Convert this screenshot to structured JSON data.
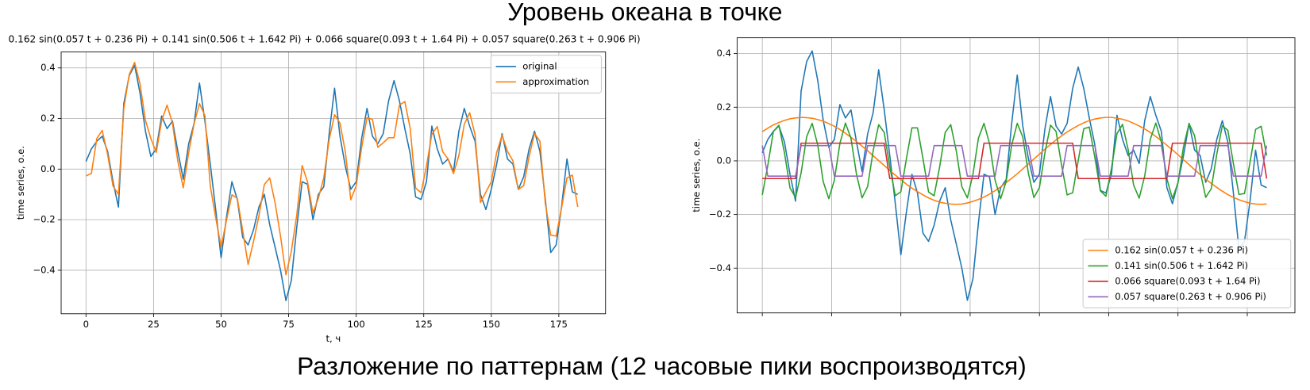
{
  "page": {
    "title": "Уровень океана в точке",
    "caption": "Разложение по паттернам (12 часовые пики воспроизводятся)"
  },
  "chart_data": [
    {
      "type": "line",
      "title": "0.162 sin(0.057 t + 0.236 Pi) + 0.141 sin(0.506 t + 1.642 Pi) + 0.066 square(0.093 t + 1.64 Pi) + 0.057 square(0.263 t + 0.906 Pi)",
      "x_label": "t, ч",
      "y_label": "time series, о.е.",
      "x": [
        0,
        2,
        4,
        6,
        8,
        10,
        12,
        14,
        16,
        18,
        20,
        22,
        24,
        26,
        28,
        30,
        32,
        34,
        36,
        38,
        40,
        42,
        44,
        46,
        48,
        50,
        52,
        54,
        56,
        58,
        60,
        62,
        64,
        66,
        68,
        70,
        72,
        74,
        76,
        78,
        80,
        82,
        84,
        86,
        88,
        90,
        92,
        94,
        96,
        98,
        100,
        102,
        104,
        106,
        108,
        110,
        112,
        114,
        116,
        118,
        120,
        122,
        124,
        126,
        128,
        130,
        132,
        134,
        136,
        138,
        140,
        142,
        144,
        146,
        148,
        150,
        152,
        154,
        156,
        158,
        160,
        162,
        164,
        166,
        168,
        170,
        172,
        174,
        176,
        178,
        180,
        182
      ],
      "series": [
        {
          "name": "original",
          "color": "#1f77b4",
          "values": [
            0.03,
            0.08,
            0.11,
            0.13,
            0.07,
            -0.05,
            -0.15,
            0.26,
            0.37,
            0.41,
            0.3,
            0.15,
            0.05,
            0.08,
            0.21,
            0.16,
            0.19,
            0.07,
            -0.04,
            0.1,
            0.18,
            0.34,
            0.19,
            0.02,
            -0.16,
            -0.35,
            -0.19,
            -0.05,
            -0.12,
            -0.27,
            -0.3,
            -0.24,
            -0.15,
            -0.1,
            -0.22,
            -0.31,
            -0.4,
            -0.52,
            -0.44,
            -0.23,
            -0.05,
            -0.06,
            -0.2,
            -0.1,
            -0.07,
            0.14,
            0.32,
            0.13,
            0.01,
            -0.08,
            -0.05,
            0.12,
            0.24,
            0.13,
            0.1,
            0.14,
            0.27,
            0.35,
            0.27,
            0.16,
            0.06,
            -0.11,
            -0.12,
            -0.05,
            0.17,
            0.08,
            0.02,
            0.04,
            -0.01,
            0.15,
            0.24,
            0.17,
            0.11,
            -0.1,
            -0.16,
            -0.08,
            0.02,
            0.14,
            0.04,
            0.02,
            -0.08,
            -0.03,
            0.08,
            0.15,
            0.07,
            -0.12,
            -0.33,
            -0.3,
            -0.15,
            0.04,
            -0.09,
            -0.1
          ]
        },
        {
          "name": "approximation",
          "color": "#ff7f0e",
          "values": [
            -0.027,
            -0.017,
            0.121,
            0.153,
            0.058,
            -0.067,
            -0.1,
            0.24,
            0.374,
            0.422,
            0.336,
            0.193,
            0.121,
            0.066,
            0.191,
            0.253,
            0.181,
            0.03,
            -0.074,
            0.065,
            0.179,
            0.259,
            0.212,
            -0.067,
            -0.192,
            -0.308,
            -0.202,
            -0.102,
            -0.115,
            -0.243,
            -0.377,
            -0.286,
            -0.185,
            -0.061,
            -0.035,
            -0.134,
            -0.266,
            -0.418,
            -0.325,
            -0.182,
            0.014,
            -0.051,
            -0.174,
            -0.115,
            -0.035,
            0.117,
            0.215,
            0.182,
            0.067,
            -0.121,
            -0.066,
            0.084,
            0.203,
            0.197,
            0.086,
            0.104,
            0.124,
            0.124,
            0.253,
            0.267,
            0.16,
            -0.075,
            -0.093,
            0.011,
            0.138,
            0.168,
            0.069,
            0.04,
            -0.018,
            0.054,
            0.177,
            0.223,
            0.136,
            -0.132,
            -0.091,
            -0.05,
            0.066,
            0.134,
            0.07,
            0.033,
            -0.081,
            -0.065,
            0.049,
            0.141,
            0.111,
            -0.137,
            -0.261,
            -0.265,
            -0.154,
            -0.035,
            -0.024,
            -0.15
          ]
        }
      ],
      "xlim": [
        -9.2,
        192.3
      ],
      "ylim": [
        -0.572,
        0.463
      ],
      "xticks": [
        0,
        25,
        50,
        75,
        100,
        125,
        150,
        175
      ],
      "yticks": [
        {
          "value": -0.4,
          "label": "−0.4"
        },
        {
          "value": -0.2,
          "label": "−0.2"
        },
        {
          "value": 0,
          "label": "0.0"
        },
        0.2,
        0.4
      ],
      "xtick_labels": true,
      "grid": true,
      "legend": "upper right"
    },
    {
      "type": "line",
      "y_label": "time series, о.е.",
      "x": [
        0,
        2,
        4,
        6,
        8,
        10,
        12,
        14,
        16,
        18,
        20,
        22,
        24,
        26,
        28,
        30,
        32,
        34,
        36,
        38,
        40,
        42,
        44,
        46,
        48,
        50,
        52,
        54,
        56,
        58,
        60,
        62,
        64,
        66,
        68,
        70,
        72,
        74,
        76,
        78,
        80,
        82,
        84,
        86,
        88,
        90,
        92,
        94,
        96,
        98,
        100,
        102,
        104,
        106,
        108,
        110,
        112,
        114,
        116,
        118,
        120,
        122,
        124,
        126,
        128,
        130,
        132,
        134,
        136,
        138,
        140,
        142,
        144,
        146,
        148,
        150,
        152,
        154,
        156,
        158,
        160,
        162,
        164,
        166,
        168,
        170,
        172,
        174,
        176,
        178,
        180,
        182
      ],
      "series": [
        {
          "color": "#1f77b4",
          "values": [
            0.03,
            0.08,
            0.11,
            0.13,
            0.07,
            -0.05,
            -0.15,
            0.26,
            0.37,
            0.41,
            0.3,
            0.15,
            0.05,
            0.08,
            0.21,
            0.16,
            0.19,
            0.07,
            -0.04,
            0.1,
            0.18,
            0.34,
            0.19,
            0.02,
            -0.16,
            -0.35,
            -0.19,
            -0.05,
            -0.12,
            -0.27,
            -0.3,
            -0.24,
            -0.15,
            -0.1,
            -0.22,
            -0.31,
            -0.4,
            -0.52,
            -0.44,
            -0.23,
            -0.05,
            -0.06,
            -0.2,
            -0.1,
            -0.07,
            0.14,
            0.32,
            0.13,
            0.01,
            -0.08,
            -0.05,
            0.12,
            0.24,
            0.13,
            0.1,
            0.14,
            0.27,
            0.35,
            0.27,
            0.16,
            0.06,
            -0.11,
            -0.12,
            -0.05,
            0.17,
            0.08,
            0.02,
            0.04,
            -0.01,
            0.15,
            0.24,
            0.17,
            0.11,
            -0.1,
            -0.16,
            -0.08,
            0.02,
            0.14,
            0.04,
            0.02,
            -0.08,
            -0.03,
            0.08,
            0.15,
            0.07,
            -0.12,
            -0.33,
            -0.3,
            -0.15,
            0.04,
            -0.09,
            -0.1
          ]
        },
        {
          "name": "0.162 sin(0.057 t + 0.236 Pi)",
          "color": "#ff7f0e",
          "values": [
            0.109,
            0.122,
            0.134,
            0.143,
            0.151,
            0.157,
            0.16,
            0.162,
            0.161,
            0.159,
            0.154,
            0.148,
            0.139,
            0.129,
            0.117,
            0.103,
            0.088,
            0.072,
            0.055,
            0.038,
            0.019,
            0.001,
            -0.017,
            -0.036,
            -0.053,
            -0.07,
            -0.087,
            -0.102,
            -0.115,
            -0.127,
            -0.138,
            -0.147,
            -0.154,
            -0.158,
            -0.161,
            -0.162,
            -0.161,
            -0.157,
            -0.151,
            -0.144,
            -0.135,
            -0.124,
            -0.111,
            -0.097,
            -0.081,
            -0.065,
            -0.048,
            -0.03,
            -0.011,
            0.007,
            0.025,
            0.044,
            0.061,
            0.078,
            0.093,
            0.108,
            0.12,
            0.132,
            0.142,
            0.15,
            0.156,
            0.16,
            0.162,
            0.162,
            0.159,
            0.155,
            0.149,
            0.14,
            0.13,
            0.119,
            0.106,
            0.091,
            0.075,
            0.058,
            0.041,
            0.023,
            0.004,
            -0.014,
            -0.033,
            -0.051,
            -0.068,
            -0.084,
            -0.099,
            -0.113,
            -0.126,
            -0.136,
            -0.145,
            -0.152,
            -0.158,
            -0.161,
            -0.162,
            -0.161
          ]
        },
        {
          "name": "0.141 sin(0.506 t + 1.642 Pi)",
          "color": "#2ca02c",
          "values": [
            -0.127,
            -0.016,
            0.11,
            0.133,
            0.03,
            -0.101,
            -0.137,
            -0.045,
            0.09,
            0.14,
            0.059,
            -0.078,
            -0.141,
            -0.072,
            0.065,
            0.141,
            0.084,
            -0.051,
            -0.138,
            -0.096,
            0.037,
            0.135,
            0.106,
            -0.022,
            -0.13,
            -0.115,
            0.008,
            0.123,
            0.123,
            0.007,
            -0.116,
            -0.13,
            -0.022,
            0.106,
            0.135,
            0.037,
            -0.096,
            -0.138,
            -0.051,
            0.085,
            0.14,
            0.064,
            -0.072,
            -0.141,
            -0.077,
            0.059,
            0.14,
            0.089,
            -0.045,
            -0.137,
            -0.1,
            0.031,
            0.133,
            0.11,
            -0.016,
            -0.127,
            -0.119,
            0.001,
            0.12,
            0.126,
            0.013,
            -0.112,
            -0.132,
            -0.028,
            0.102,
            0.136,
            0.043,
            -0.091,
            -0.139,
            -0.056,
            0.08,
            0.141,
            0.07,
            -0.067,
            -0.141,
            -0.082,
            0.053,
            0.139,
            0.094,
            -0.039,
            -0.136,
            -0.104,
            0.025,
            0.131,
            0.114,
            -0.01,
            -0.125,
            -0.122,
            -0.005,
            0.117,
            0.129,
            0.02
          ]
        },
        {
          "name": "0.066 square(0.093 t + 1.64 Pi)",
          "color": "#d62728",
          "values": [
            -0.066,
            -0.066,
            -0.066,
            -0.066,
            -0.066,
            -0.066,
            -0.066,
            0.066,
            0.066,
            0.066,
            0.066,
            0.066,
            0.066,
            0.066,
            0.066,
            0.066,
            0.066,
            0.066,
            0.066,
            0.066,
            0.066,
            0.066,
            0.066,
            -0.066,
            -0.066,
            -0.066,
            -0.066,
            -0.066,
            -0.066,
            -0.066,
            -0.066,
            -0.066,
            -0.066,
            -0.066,
            -0.066,
            -0.066,
            -0.066,
            -0.066,
            -0.066,
            -0.066,
            0.066,
            0.066,
            0.066,
            0.066,
            0.066,
            0.066,
            0.066,
            0.066,
            0.066,
            0.066,
            0.066,
            0.066,
            0.066,
            0.066,
            0.066,
            0.066,
            0.066,
            -0.066,
            -0.066,
            -0.066,
            -0.066,
            -0.066,
            -0.066,
            -0.066,
            -0.066,
            -0.066,
            -0.066,
            -0.066,
            -0.066,
            -0.066,
            -0.066,
            -0.066,
            -0.066,
            -0.066,
            0.066,
            0.066,
            0.066,
            0.066,
            0.066,
            0.066,
            0.066,
            0.066,
            0.066,
            0.066,
            0.066,
            0.066,
            0.066,
            0.066,
            0.066,
            0.066,
            0.066,
            -0.066
          ]
        },
        {
          "name": "0.057 square(0.263 t + 0.906 Pi)",
          "color": "#9467bd",
          "values": [
            0.057,
            -0.057,
            -0.057,
            -0.057,
            -0.057,
            -0.057,
            -0.057,
            0.057,
            0.057,
            0.057,
            0.057,
            0.057,
            0.057,
            -0.057,
            -0.057,
            -0.057,
            -0.057,
            -0.057,
            -0.057,
            0.057,
            0.057,
            0.057,
            0.057,
            0.057,
            0.057,
            -0.057,
            -0.057,
            -0.057,
            -0.057,
            -0.057,
            -0.057,
            0.057,
            0.057,
            0.057,
            0.057,
            0.057,
            0.057,
            -0.057,
            -0.057,
            -0.057,
            -0.057,
            -0.057,
            -0.057,
            0.057,
            0.057,
            0.057,
            0.057,
            0.057,
            0.057,
            -0.057,
            -0.057,
            -0.057,
            -0.057,
            -0.057,
            -0.057,
            0.057,
            0.057,
            0.057,
            0.057,
            0.057,
            0.057,
            -0.057,
            -0.057,
            -0.057,
            -0.057,
            -0.057,
            -0.057,
            0.057,
            0.057,
            0.057,
            0.057,
            0.057,
            0.057,
            -0.057,
            -0.057,
            -0.057,
            -0.057,
            -0.057,
            -0.057,
            0.057,
            0.057,
            0.057,
            0.057,
            0.057,
            0.057,
            -0.057,
            -0.057,
            -0.057,
            -0.057,
            -0.057,
            -0.057,
            0.057
          ]
        }
      ],
      "xlim": [
        -9.1,
        192.2
      ],
      "ylim": [
        -0.567,
        0.459
      ],
      "xticks": [
        0,
        25,
        50,
        75,
        100,
        125,
        150,
        175
      ],
      "yticks": [
        {
          "value": -0.4,
          "label": "−0.4"
        },
        {
          "value": -0.2,
          "label": "−0.2"
        },
        {
          "value": 0,
          "label": "0.0"
        },
        0.2,
        0.4
      ],
      "xtick_labels": false,
      "grid": true,
      "legend": "lower right"
    }
  ]
}
